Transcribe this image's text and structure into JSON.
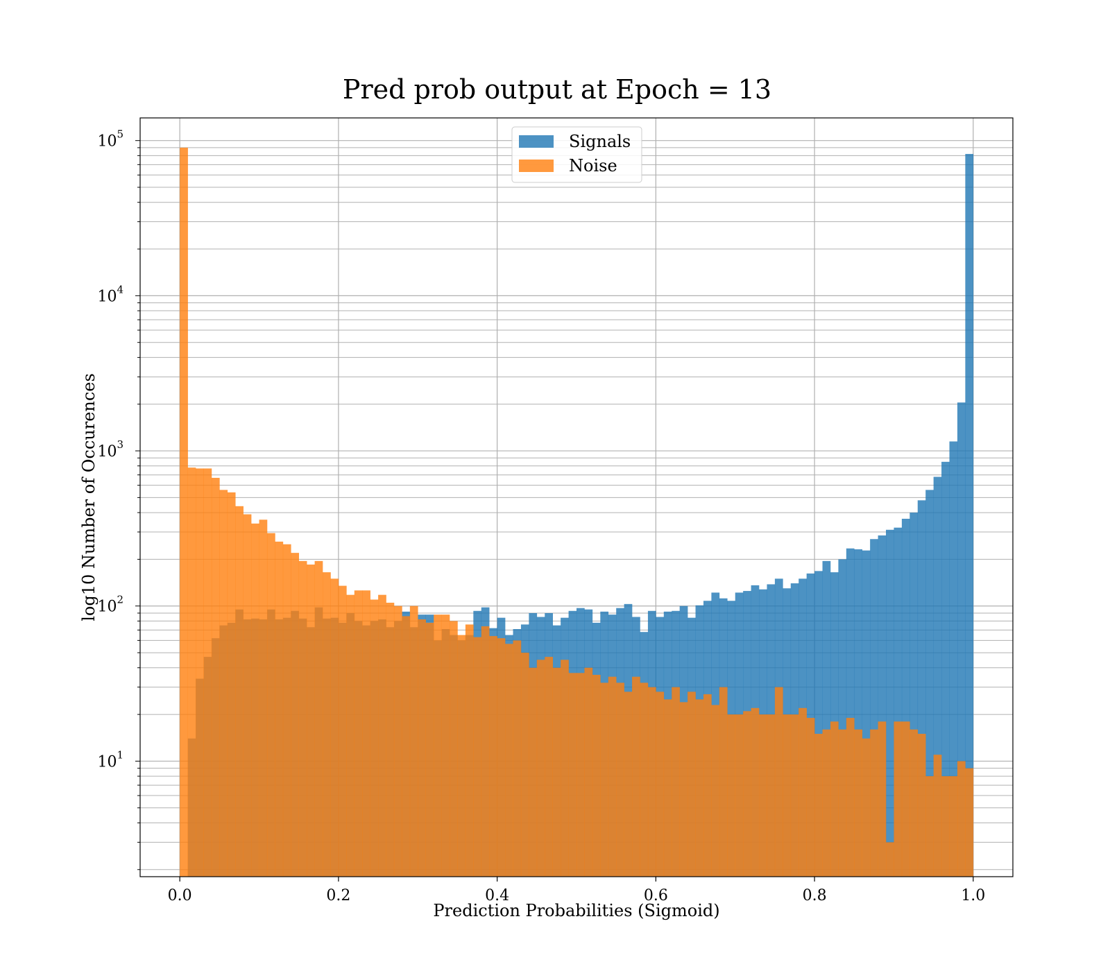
{
  "colors": {
    "signals": "#1f77b4",
    "noise": "#ff7f0e",
    "grid": "#b0b0b0",
    "axes": "#000000"
  },
  "chart_data": {
    "type": "bar",
    "histogram": true,
    "title": "Pred prob output at Epoch = 13",
    "xlabel": "Prediction Probabilities (Sigmoid)",
    "ylabel": "log10 Number of Occurences",
    "xlim": [
      -0.05,
      1.05
    ],
    "ylim": [
      1.8,
      140000
    ],
    "yscale": "log",
    "grid": true,
    "legend_position": "upper center",
    "x_ticks": [
      "0.0",
      "0.2",
      "0.4",
      "0.6",
      "0.8",
      "1.0"
    ],
    "y_ticks": [
      {
        "base": "10",
        "exp": "1"
      },
      {
        "base": "10",
        "exp": "2"
      },
      {
        "base": "10",
        "exp": "3"
      },
      {
        "base": "10",
        "exp": "4"
      },
      {
        "base": "10",
        "exp": "5"
      }
    ],
    "bin_range": [
      0,
      1
    ],
    "bin_count": 100,
    "series": [
      {
        "name": "Signals",
        "color": "#1f77b4",
        "alpha": 0.8,
        "values": [
          1.8,
          14,
          34,
          47,
          62,
          75,
          78,
          95,
          82,
          83,
          82,
          95,
          82,
          84,
          93,
          83,
          73,
          98,
          83,
          84,
          78,
          90,
          80,
          75,
          80,
          82,
          73,
          80,
          92,
          73,
          88,
          88,
          60,
          71,
          65,
          60,
          65,
          93,
          98,
          72,
          84,
          65,
          71,
          76,
          90,
          85,
          90,
          75,
          84,
          93,
          97,
          95,
          78,
          92,
          88,
          97,
          103,
          85,
          68,
          93,
          85,
          92,
          93,
          100,
          84,
          101,
          108,
          122,
          112,
          108,
          122,
          125,
          136,
          128,
          138,
          150,
          130,
          140,
          150,
          162,
          168,
          195,
          165,
          200,
          235,
          232,
          228,
          270,
          285,
          310,
          320,
          365,
          400,
          480,
          560,
          680,
          850,
          1150,
          2050,
          82000
        ]
      },
      {
        "name": "Noise",
        "color": "#ff7f0e",
        "alpha": 0.8,
        "values": [
          90000,
          780,
          770,
          770,
          670,
          560,
          540,
          440,
          390,
          340,
          360,
          295,
          260,
          250,
          220,
          195,
          185,
          195,
          165,
          150,
          135,
          118,
          126,
          126,
          110,
          118,
          105,
          100,
          86,
          100,
          82,
          78,
          88,
          88,
          80,
          65,
          76,
          63,
          74,
          64,
          62,
          57,
          60,
          50,
          40,
          45,
          47,
          40,
          45,
          37,
          37,
          40,
          36,
          32,
          35,
          32,
          28,
          35,
          32,
          30,
          28,
          25,
          30,
          24,
          28,
          25,
          27,
          23,
          30,
          20,
          20,
          21,
          22,
          20,
          20,
          30,
          20,
          20,
          22,
          19,
          15,
          16,
          18,
          16,
          19,
          16,
          14,
          16,
          18,
          3,
          18,
          18,
          16,
          15,
          8,
          11,
          8,
          8,
          10,
          9
        ]
      }
    ]
  }
}
